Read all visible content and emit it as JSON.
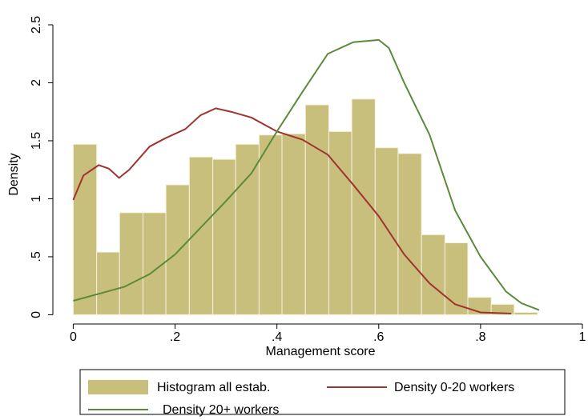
{
  "chart_data": {
    "type": "histogram",
    "x_label": "Management score",
    "y_label": "Density",
    "xlim": [
      -0.04,
      1.0
    ],
    "ylim": [
      -0.08,
      2.5
    ],
    "xticks": [
      0,
      {
        "value": 0.2,
        "label": ".2"
      },
      {
        "value": 0.4,
        "label": ".4"
      },
      {
        "value": 0.6,
        "label": ".6"
      },
      {
        "value": 0.8,
        "label": ".8"
      },
      1
    ],
    "yticks": [
      0,
      {
        "value": 0.5,
        "label": ".5"
      },
      1,
      {
        "value": 1.5,
        "label": "1.5"
      },
      2,
      {
        "value": 2.5,
        "label": "2.5"
      }
    ],
    "histogram": {
      "name": "Histogram all estab.",
      "color": "#c9bf7d",
      "bins": [
        0,
        0.046,
        0.091,
        0.137,
        0.182,
        0.228,
        0.274,
        0.319,
        0.365,
        0.41,
        0.456,
        0.502,
        0.547,
        0.593,
        0.638,
        0.684,
        0.73,
        0.775,
        0.821,
        0.866,
        0.912
      ],
      "values": [
        1.47,
        0.54,
        0.88,
        0.88,
        1.12,
        1.36,
        1.34,
        1.47,
        1.55,
        1.56,
        1.81,
        1.58,
        1.86,
        1.44,
        1.39,
        0.69,
        0.62,
        0.15,
        0.09,
        0.02
      ]
    },
    "series": [
      {
        "name": "Density 0-20 workers",
        "color": "#a0322f",
        "x": [
          0,
          0.02,
          0.05,
          0.07,
          0.09,
          0.11,
          0.15,
          0.18,
          0.22,
          0.25,
          0.28,
          0.31,
          0.35,
          0.4,
          0.45,
          0.5,
          0.55,
          0.6,
          0.65,
          0.7,
          0.75,
          0.8,
          0.86
        ],
        "values": [
          0.99,
          1.2,
          1.29,
          1.26,
          1.18,
          1.25,
          1.45,
          1.52,
          1.6,
          1.72,
          1.78,
          1.75,
          1.7,
          1.58,
          1.51,
          1.38,
          1.12,
          0.85,
          0.52,
          0.27,
          0.09,
          0.02,
          0.01
        ]
      },
      {
        "name": "Density 20+ workers",
        "color": "#5a8a3a",
        "x": [
          0,
          0.05,
          0.1,
          0.15,
          0.2,
          0.25,
          0.3,
          0.35,
          0.4,
          0.45,
          0.5,
          0.55,
          0.6,
          0.62,
          0.65,
          0.7,
          0.75,
          0.8,
          0.85,
          0.88,
          0.915
        ],
        "values": [
          0.12,
          0.18,
          0.24,
          0.35,
          0.52,
          0.75,
          0.98,
          1.22,
          1.58,
          1.92,
          2.25,
          2.35,
          2.37,
          2.3,
          2.0,
          1.55,
          0.9,
          0.5,
          0.2,
          0.1,
          0.04
        ]
      }
    ]
  }
}
